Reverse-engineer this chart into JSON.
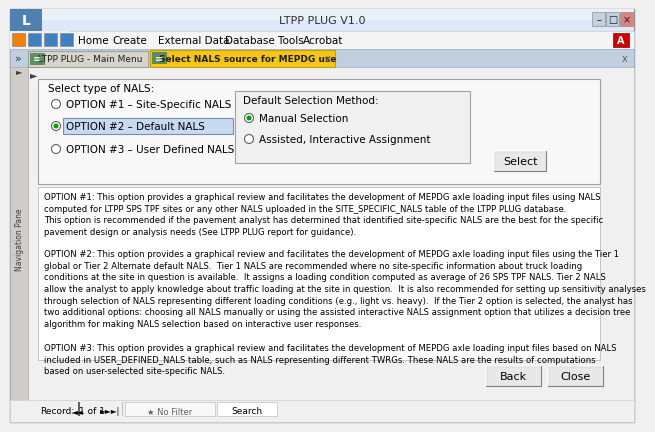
{
  "title_bar": "LTPP PLUG V1.0",
  "tab1": "LTPP PLUG - Main Menu",
  "tab2": "Select NALS source for MEPDG use",
  "frame1_title": "Select type of NALS:",
  "radio_options": [
    "OPTION #1 – Site-Specific NALS",
    "OPTION #2 – Default NALS",
    "OPTION #3 – User Defined NALS"
  ],
  "radio_selected": 1,
  "frame2_title": "Default Selection Method:",
  "sub_radio_options": [
    "Manual Selection",
    "Assisted, Interactive Assignment"
  ],
  "sub_radio_selected": 0,
  "select_btn": "Select",
  "text_option1": "OPTION #1: This option provides a graphical review and facilitates the development of MEPDG axle loading input files using NALS\ncomputed for LTPP SPS TPF sites or any other NALS uploaded in the SITE_SPECIFIC_NALS table of the LTPP PLUG database.\nThis option is recommended if the pavement analyst has determined that identified site-specific NALS are the best for the specific\npavement design or analysis needs (See LTPP PLUG report for guidance).",
  "text_option2": "OPTION #2: This option provides a graphical review and facilitates the development of MEPDG axle loading input files using the Tier 1\nglobal or Tier 2 Alternate default NALS.  Tier 1 NALS are recommended where no site-specific information about truck loading\nconditions at the site in question is available.  It assigns a loading condition computed as average of 26 SPS TPF NALS. Tier 2 NALS\nallow the analyst to apply knowledge about traffic loading at the site in question.  It is also recommended for setting up sensitivity analyses\nthrough selection of NALS representing different loading conditions (e.g., light vs. heavy).  If the Tier 2 option is selected, the analyst has\ntwo additional options: choosing all NALS manually or using the assisted interactive NALS assignment option that utilizes a decision tree\nalgorithm for making NALS selection based on interactive user responses.",
  "text_option3": "OPTION #3: This option provides a graphical review and facilitates the development of MEPDG axle loading input files based on NALS\nincluded in USER_DEFINED_NALS table, such as NALS representing different TWRGs. These NALS are the results of computations\nbased on user-selected site-specific NALS.",
  "back_btn": "Back",
  "close_btn": "Close",
  "status_text": "Record:  ◄   1 of 1   ► ►|     No Filter    Search",
  "bg_main": "#f0f0f0",
  "titlebar_bg": "#c8d8ee",
  "titlebar_gradient_top": "#d0e0f0",
  "titlebar_gradient_bot": "#a0b8d8",
  "win_bg": "#f5f5f5",
  "menu_bg": "#f0f0f0",
  "tab_active_bg": "#ffd700",
  "tab_inactive_bg": "#d8d8d8",
  "frame_bg": "#f8f8f8",
  "subframe_bg": "#f0f0f0",
  "text_area_bg": "#ffffff",
  "nav_pane_bg": "#d8d8d8",
  "border_gray": "#a0a0a0",
  "selected_row_bg": "#c8daf0",
  "selected_row_border": "#7090b0",
  "radio_fill_selected": "#00a000",
  "btn_face": "#e8e8e8",
  "status_bg": "#f0f0f0"
}
